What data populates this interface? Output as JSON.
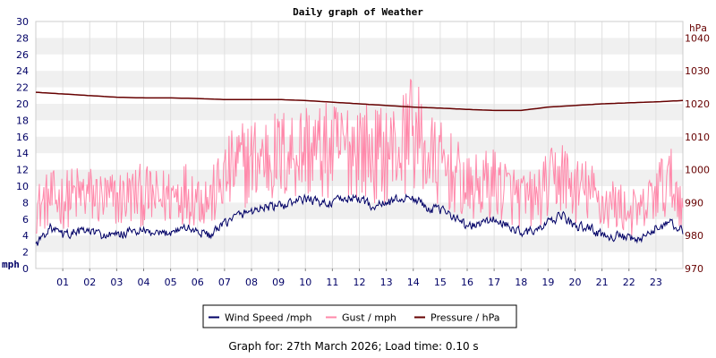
{
  "chart_data": {
    "type": "line",
    "title": "Daily graph of Weather",
    "x_unit": "hour",
    "x_ticks": [
      "01",
      "02",
      "03",
      "04",
      "05",
      "06",
      "07",
      "08",
      "09",
      "10",
      "11",
      "12",
      "13",
      "14",
      "15",
      "16",
      "17",
      "18",
      "19",
      "20",
      "21",
      "22",
      "23"
    ],
    "xlim": [
      0,
      24
    ],
    "left_axis": {
      "label": "mph",
      "ylim": [
        0,
        30
      ],
      "ticks": [
        "0",
        "2",
        "4",
        "6",
        "8",
        "10",
        "12",
        "14",
        "16",
        "18",
        "20",
        "22",
        "24",
        "26",
        "28",
        "30"
      ]
    },
    "right_axis": {
      "label": "hPa",
      "ylim": [
        970,
        1045
      ],
      "ticks": [
        "970",
        "980",
        "990",
        "1000",
        "1010",
        "1020",
        "1030",
        "1040"
      ]
    },
    "grid": true,
    "legend_placement": "bottom-center",
    "series": [
      {
        "name": "Wind Speed /mph",
        "axis": "left",
        "color": "#000066",
        "x": [
          0,
          0.5,
          1,
          1.5,
          2,
          2.5,
          3,
          3.5,
          4,
          4.5,
          5,
          5.5,
          6,
          6.5,
          7,
          7.5,
          8,
          8.5,
          9,
          9.5,
          10,
          10.5,
          11,
          11.5,
          12,
          12.5,
          13,
          13.5,
          14,
          14.5,
          15,
          15.5,
          16,
          16.5,
          17,
          17.5,
          18,
          18.5,
          19,
          19.5,
          20,
          20.5,
          21,
          21.5,
          22,
          22.5,
          23,
          23.5,
          24
        ],
        "values": [
          3.0,
          5.0,
          4.0,
          4.5,
          4.5,
          4.0,
          4.0,
          4.5,
          4.5,
          4.0,
          4.5,
          5.0,
          4.5,
          4.0,
          5.5,
          6.5,
          7.0,
          7.5,
          7.5,
          8.0,
          8.5,
          8.0,
          8.0,
          8.5,
          8.5,
          7.5,
          8.0,
          8.5,
          8.5,
          7.5,
          7.0,
          6.5,
          5.0,
          5.5,
          6.0,
          5.0,
          4.5,
          4.5,
          5.5,
          6.5,
          5.0,
          5.0,
          4.0,
          4.0,
          3.5,
          3.5,
          5.0,
          5.5,
          4.5
        ]
      },
      {
        "name": "Gust / mph",
        "axis": "left",
        "color": "#ff88aa",
        "x": [
          0,
          0.5,
          1,
          1.5,
          2,
          2.5,
          3,
          3.5,
          4,
          4.5,
          5,
          5.5,
          6,
          6.5,
          7,
          7.5,
          8,
          8.5,
          9,
          9.5,
          10,
          10.5,
          11,
          11.5,
          12,
          12.5,
          13,
          13.5,
          14,
          14.5,
          15,
          15.5,
          16,
          16.5,
          17,
          17.5,
          18,
          18.5,
          19,
          19.5,
          20,
          20.5,
          21,
          21.5,
          22,
          22.5,
          23,
          23.5,
          24
        ],
        "values": [
          7.0,
          8.0,
          8.0,
          8.5,
          8.5,
          8.0,
          8.0,
          8.5,
          8.5,
          8.0,
          8.5,
          9.0,
          8.5,
          8.0,
          10.5,
          12.0,
          12.5,
          13.0,
          13.0,
          13.5,
          14.0,
          13.5,
          13.5,
          14.0,
          14.5,
          13.0,
          13.5,
          14.0,
          16.0,
          13.0,
          12.0,
          11.0,
          9.0,
          9.5,
          10.0,
          9.0,
          8.0,
          8.0,
          9.5,
          11.0,
          9.0,
          9.0,
          7.5,
          7.5,
          6.5,
          6.5,
          9.0,
          10.0,
          8.0
        ],
        "peak": {
          "x": 13.9,
          "value": 23.0
        }
      },
      {
        "name": "Pressure / hPa",
        "axis": "right",
        "color": "#660000",
        "x": [
          0,
          1,
          2,
          3,
          4,
          5,
          6,
          7,
          8,
          9,
          10,
          11,
          12,
          13,
          14,
          15,
          16,
          17,
          18,
          19,
          20,
          21,
          22,
          23,
          24
        ],
        "values": [
          1023.5,
          1023.0,
          1022.5,
          1022.0,
          1021.8,
          1021.8,
          1021.6,
          1021.3,
          1021.3,
          1021.3,
          1021.0,
          1020.5,
          1020.0,
          1019.5,
          1019.0,
          1018.7,
          1018.3,
          1018.0,
          1018.0,
          1019.0,
          1019.5,
          1020.0,
          1020.3,
          1020.6,
          1021.0
        ]
      }
    ]
  },
  "footer": {
    "text": "Graph for: 27th March 2026; Load time: 0.10 s"
  }
}
